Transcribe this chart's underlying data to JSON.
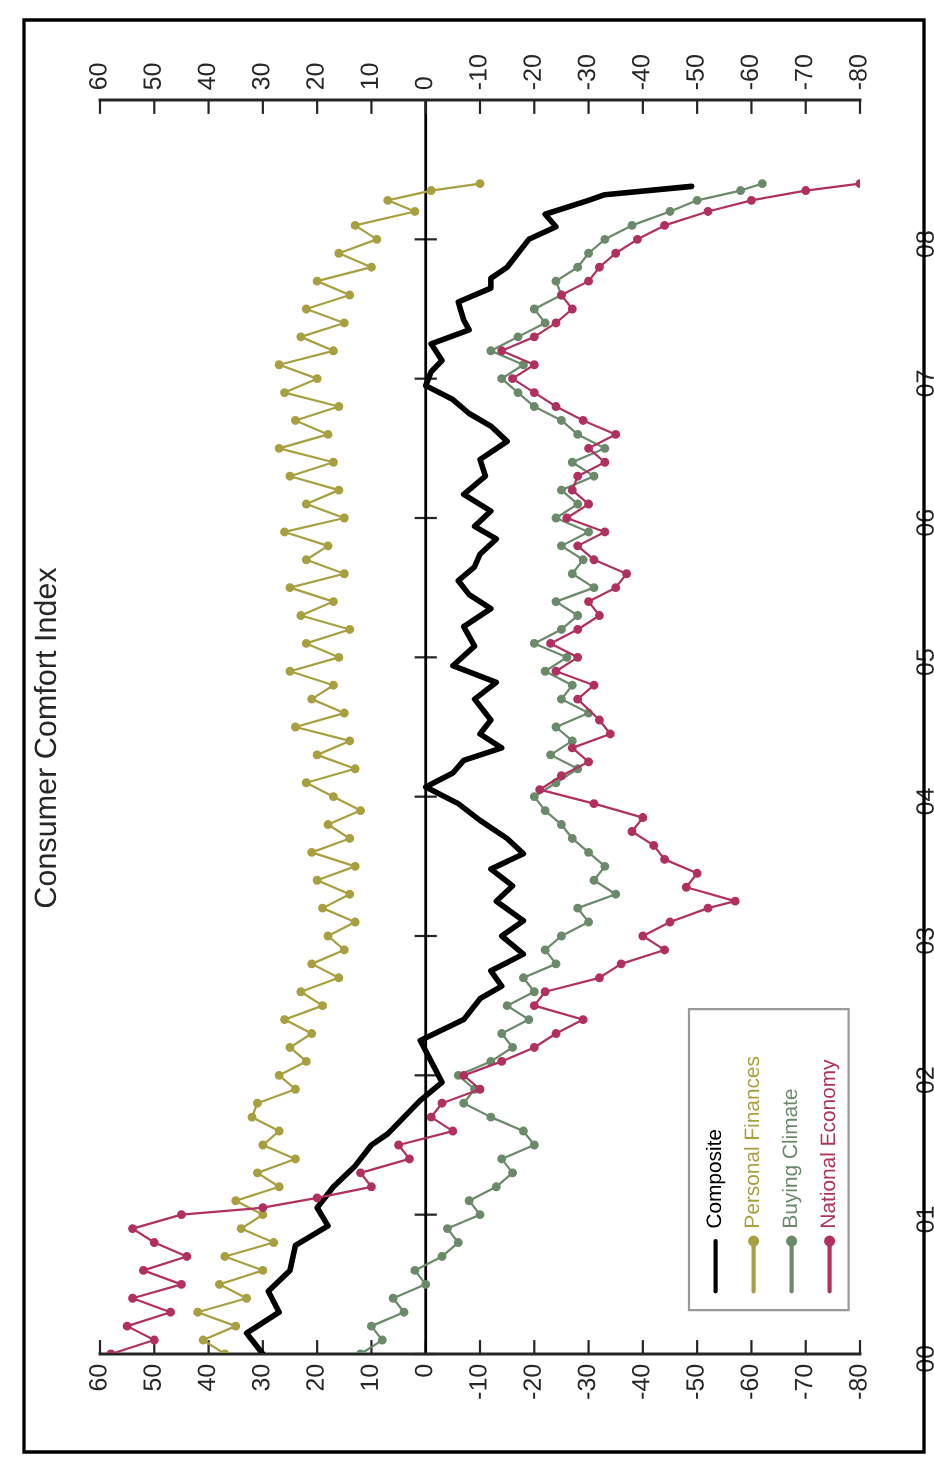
{
  "chart_data": {
    "type": "line",
    "title": "Consumer Comfort Index",
    "ylim": [
      2000,
      2009
    ],
    "yticks": [
      {
        "value": 2000,
        "label": "00"
      },
      {
        "value": 2001,
        "label": "01"
      },
      {
        "value": 2002,
        "label": "02"
      },
      {
        "value": 2003,
        "label": "03"
      },
      {
        "value": 2004,
        "label": "04"
      },
      {
        "value": 2005,
        "label": "05"
      },
      {
        "value": 2006,
        "label": "06"
      },
      {
        "value": 2007,
        "label": "07"
      },
      {
        "value": 2008,
        "label": "08"
      }
    ],
    "xlim": [
      60,
      -80
    ],
    "xticks": [
      60,
      50,
      40,
      30,
      20,
      10,
      0,
      -10,
      -20,
      -30,
      -40,
      -50,
      -60,
      -70,
      -80
    ],
    "x2lim": [
      60,
      -80
    ],
    "x2ticks": [
      60,
      50,
      40,
      30,
      20,
      10,
      0,
      -10,
      -20,
      -30,
      -40,
      -50,
      -60,
      -70,
      -80
    ],
    "legend": "bottom right",
    "grid": false,
    "ref_lines": [
      {
        "axis": "x",
        "value": 0,
        "color": "#000000",
        "line_style": "solid"
      }
    ],
    "line_style": "solid",
    "series": [
      {
        "name": "Composite",
        "color": "#000000",
        "marker": "none",
        "values": [
          2000.0,
          2000.15,
          2000.3,
          2000.45,
          2000.6,
          2000.78,
          2000.92,
          2001.05,
          2001.2,
          2001.35,
          2001.5,
          2001.58,
          2001.7,
          2001.82,
          2001.95,
          2002.1,
          2002.25,
          2002.4,
          2002.55,
          2002.64,
          2002.75,
          2002.87,
          2003.0,
          2003.11,
          2003.25,
          2003.36,
          2003.48,
          2003.59,
          2003.7,
          2003.83,
          2003.95,
          2004.07,
          2004.17,
          2004.26,
          2004.35,
          2004.45,
          2004.55,
          2004.7,
          2004.82,
          2004.94,
          2005.08,
          2005.22,
          2005.35,
          2005.45,
          2005.55,
          2005.65,
          2005.74,
          2005.85,
          2005.94,
          2006.05,
          2006.17,
          2006.3,
          2006.42,
          2006.55,
          2006.66,
          2006.75,
          2006.85,
          2006.95,
          2007.05,
          2007.13,
          2007.25,
          2007.35,
          2007.42,
          2007.55,
          2007.65,
          2007.72,
          2007.8,
          2007.9,
          2008.0,
          2008.09,
          2008.18,
          2008.28,
          2008.32,
          2008.38
        ],
        "x": [
          30,
          33,
          27,
          29,
          25,
          24,
          18,
          20,
          17,
          13,
          10,
          7,
          4,
          1,
          -3,
          -1,
          1,
          -7,
          -10,
          -14,
          -12,
          -18,
          -14,
          -18,
          -13,
          -16,
          -12,
          -18,
          -15,
          -10,
          -6,
          0,
          -5,
          -7,
          -14,
          -10,
          -12,
          -9,
          -13,
          -5,
          -9,
          -7,
          -12,
          -8,
          -6,
          -9,
          -10,
          -13,
          -9,
          -12,
          -7,
          -11,
          -10,
          -15,
          -12,
          -8,
          -5,
          0,
          -1,
          -3,
          -1,
          -8,
          -7,
          -6,
          -12,
          -12,
          -15,
          -17,
          -19,
          -24,
          -22,
          -30,
          -33,
          -49
        ]
      },
      {
        "name": "Personal Finances",
        "color": "#a8a040",
        "marker": "circle",
        "values": [
          2000.0,
          2000.1,
          2000.2,
          2000.3,
          2000.4,
          2000.5,
          2000.6,
          2000.7,
          2000.8,
          2000.9,
          2001.0,
          2001.1,
          2001.2,
          2001.3,
          2001.4,
          2001.5,
          2001.6,
          2001.7,
          2001.8,
          2001.9,
          2002.0,
          2002.1,
          2002.2,
          2002.3,
          2002.4,
          2002.5,
          2002.6,
          2002.7,
          2002.8,
          2002.9,
          2003.0,
          2003.1,
          2003.2,
          2003.3,
          2003.4,
          2003.5,
          2003.6,
          2003.7,
          2003.8,
          2003.9,
          2004.0,
          2004.1,
          2004.2,
          2004.3,
          2004.4,
          2004.5,
          2004.6,
          2004.7,
          2004.8,
          2004.9,
          2005.0,
          2005.1,
          2005.2,
          2005.3,
          2005.4,
          2005.5,
          2005.6,
          2005.7,
          2005.8,
          2005.9,
          2006.0,
          2006.1,
          2006.2,
          2006.3,
          2006.4,
          2006.5,
          2006.6,
          2006.7,
          2006.8,
          2006.9,
          2007.0,
          2007.1,
          2007.2,
          2007.3,
          2007.4,
          2007.5,
          2007.6,
          2007.7,
          2007.8,
          2007.9,
          2008.0,
          2008.1,
          2008.2,
          2008.28,
          2008.35,
          2008.4
        ],
        "x": [
          37,
          41,
          35,
          42,
          33,
          38,
          30,
          37,
          28,
          34,
          30,
          35,
          27,
          31,
          24,
          30,
          27,
          32,
          31,
          24,
          27,
          22,
          25,
          21,
          26,
          19,
          23,
          16,
          21,
          15,
          18,
          13,
          19,
          14,
          20,
          13,
          21,
          14,
          18,
          12,
          17,
          22,
          13,
          20,
          14,
          24,
          15,
          21,
          17,
          25,
          16,
          22,
          14,
          23,
          17,
          25,
          15,
          22,
          18,
          26,
          15,
          22,
          16,
          25,
          17,
          27,
          18,
          24,
          16,
          26,
          20,
          27,
          17,
          23,
          15,
          22,
          14,
          20,
          10,
          16,
          9,
          13,
          2,
          7,
          -1,
          -10
        ]
      },
      {
        "name": "Buying Climate",
        "color": "#6a8a6a",
        "marker": "circle",
        "values": [
          2000.0,
          2000.1,
          2000.2,
          2000.3,
          2000.4,
          2000.5,
          2000.6,
          2000.7,
          2000.8,
          2000.9,
          2001.0,
          2001.1,
          2001.2,
          2001.3,
          2001.4,
          2001.5,
          2001.6,
          2001.7,
          2001.8,
          2001.9,
          2002.0,
          2002.1,
          2002.2,
          2002.3,
          2002.4,
          2002.5,
          2002.6,
          2002.7,
          2002.8,
          2002.9,
          2003.0,
          2003.1,
          2003.2,
          2003.3,
          2003.4,
          2003.5,
          2003.6,
          2003.7,
          2003.8,
          2003.9,
          2004.0,
          2004.1,
          2004.2,
          2004.3,
          2004.4,
          2004.5,
          2004.6,
          2004.7,
          2004.8,
          2004.9,
          2005.0,
          2005.1,
          2005.2,
          2005.3,
          2005.4,
          2005.5,
          2005.6,
          2005.7,
          2005.8,
          2005.9,
          2006.0,
          2006.1,
          2006.2,
          2006.3,
          2006.4,
          2006.5,
          2006.6,
          2006.7,
          2006.8,
          2006.9,
          2007.0,
          2007.1,
          2007.2,
          2007.3,
          2007.4,
          2007.5,
          2007.6,
          2007.7,
          2007.8,
          2007.9,
          2008.0,
          2008.1,
          2008.2,
          2008.28,
          2008.35,
          2008.4
        ],
        "x": [
          12,
          8,
          10,
          4,
          6,
          0,
          2,
          -3,
          -6,
          -4,
          -10,
          -8,
          -13,
          -16,
          -14,
          -20,
          -18,
          -12,
          -7,
          -9,
          -6,
          -12,
          -16,
          -14,
          -19,
          -15,
          -20,
          -18,
          -24,
          -22,
          -25,
          -30,
          -28,
          -35,
          -31,
          -33,
          -30,
          -27,
          -25,
          -22,
          -20,
          -24,
          -28,
          -23,
          -27,
          -24,
          -30,
          -25,
          -27,
          -22,
          -26,
          -20,
          -25,
          -28,
          -24,
          -31,
          -27,
          -29,
          -25,
          -30,
          -24,
          -28,
          -25,
          -31,
          -27,
          -33,
          -28,
          -25,
          -20,
          -17,
          -14,
          -18,
          -12,
          -17,
          -22,
          -20,
          -25,
          -24,
          -28,
          -30,
          -33,
          -38,
          -45,
          -50,
          -58,
          -62
        ]
      },
      {
        "name": "National Economy",
        "color": "#b03060",
        "marker": "circle",
        "values": [
          2000.0,
          2000.1,
          2000.2,
          2000.3,
          2000.4,
          2000.5,
          2000.6,
          2000.7,
          2000.8,
          2000.9,
          2001.0,
          2001.05,
          2001.12,
          2001.2,
          2001.3,
          2001.4,
          2001.5,
          2001.6,
          2001.7,
          2001.8,
          2001.9,
          2002.0,
          2002.1,
          2002.2,
          2002.3,
          2002.4,
          2002.5,
          2002.6,
          2002.7,
          2002.8,
          2002.9,
          2003.0,
          2003.1,
          2003.2,
          2003.25,
          2003.35,
          2003.45,
          2003.55,
          2003.65,
          2003.75,
          2003.85,
          2003.95,
          2004.05,
          2004.15,
          2004.25,
          2004.35,
          2004.45,
          2004.55,
          2004.7,
          2004.8,
          2004.9,
          2005.0,
          2005.1,
          2005.2,
          2005.3,
          2005.4,
          2005.5,
          2005.6,
          2005.7,
          2005.8,
          2005.9,
          2006.0,
          2006.1,
          2006.2,
          2006.3,
          2006.4,
          2006.5,
          2006.6,
          2006.7,
          2006.8,
          2006.9,
          2007.0,
          2007.1,
          2007.2,
          2007.3,
          2007.4,
          2007.5,
          2007.6,
          2007.7,
          2007.8,
          2007.9,
          2008.0,
          2008.1,
          2008.2,
          2008.28,
          2008.35,
          2008.4
        ],
        "x": [
          58,
          50,
          55,
          47,
          54,
          45,
          52,
          44,
          50,
          54,
          45,
          30,
          20,
          10,
          12,
          3,
          5,
          -5,
          -1,
          -3,
          -10,
          -7,
          -14,
          -20,
          -24,
          -29,
          -20,
          -22,
          -32,
          -36,
          -44,
          -40,
          -45,
          -52,
          -57,
          -48,
          -50,
          -44,
          -42,
          -38,
          -40,
          -31,
          -21,
          -25,
          -30,
          -27,
          -34,
          -32,
          -28,
          -31,
          -24,
          -28,
          -23,
          -28,
          -32,
          -30,
          -35,
          -37,
          -31,
          -28,
          -33,
          -26,
          -30,
          -27,
          -28,
          -33,
          -30,
          -35,
          -29,
          -24,
          -20,
          -16,
          -20,
          -14,
          -20,
          -24,
          -27,
          -25,
          -30,
          -32,
          -35,
          -39,
          -44,
          -52,
          -60,
          -70,
          -80
        ]
      }
    ]
  }
}
